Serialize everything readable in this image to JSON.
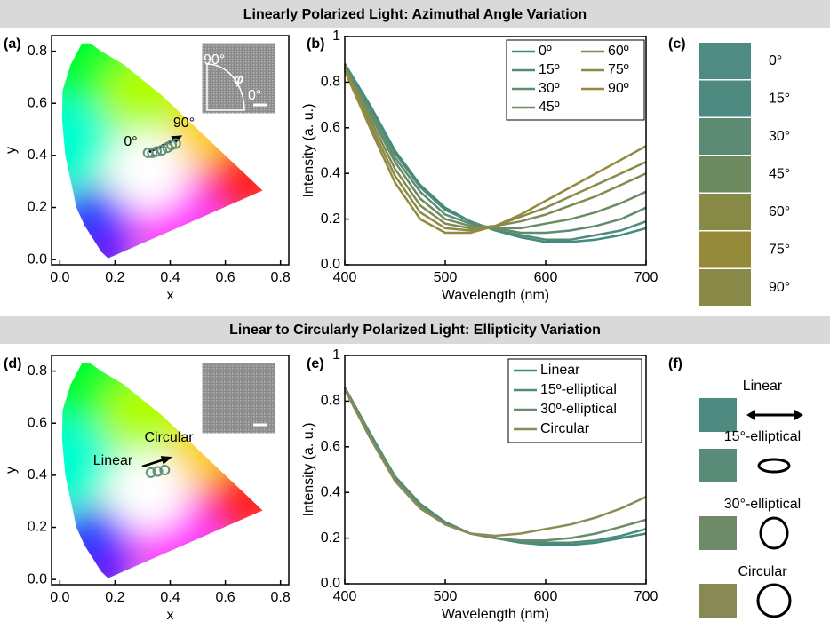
{
  "headers": [
    "Linearly Polarized Light: Azimuthal Angle Variation",
    "Linear to Circularly Polarized Light: Ellipticity Variation"
  ],
  "panel_labels": [
    "(a)",
    "(b)",
    "(c)",
    "(d)",
    "(e)",
    "(f)"
  ],
  "chart_data": [
    {
      "type": "scatter",
      "xlabel": "x",
      "ylabel": "y",
      "xlim": [
        -0.03,
        0.83
      ],
      "ylim": [
        -0.02,
        0.86
      ],
      "xticks": [
        {
          "value": 0,
          "label": "0.0"
        },
        0.2,
        0.4,
        0.6,
        0.8
      ],
      "yticks": [
        {
          "value": 0,
          "label": "0.0"
        },
        0.2,
        0.4,
        0.6,
        0.8
      ],
      "annotations": [
        "0°",
        "90°"
      ],
      "inset_labels": [
        "90°",
        "φ",
        "0°"
      ],
      "series": [
        {
          "color": "#5f8f80",
          "x": [
            0.32,
            0.335,
            0.35,
            0.37,
            0.39,
            0.405,
            0.42
          ],
          "values": [
            0.41,
            0.41,
            0.415,
            0.42,
            0.43,
            0.44,
            0.445
          ]
        }
      ]
    },
    {
      "type": "line",
      "xlabel": "Wavelength (nm)",
      "ylabel": "Intensity (a. u.)",
      "xlim": [
        400,
        700
      ],
      "ylim": [
        0,
        1
      ],
      "xticks": [
        400,
        500,
        600,
        700
      ],
      "yticks": [
        {
          "value": 0,
          "label": "0.0"
        },
        0.2,
        0.4,
        0.6,
        0.8,
        1
      ],
      "x": [
        400,
        425,
        450,
        475,
        500,
        525,
        550,
        575,
        600,
        625,
        650,
        675,
        700
      ],
      "series": [
        {
          "name": "0º",
          "color": "#3f8b7f",
          "values": [
            0.88,
            0.7,
            0.5,
            0.35,
            0.25,
            0.19,
            0.15,
            0.12,
            0.1,
            0.1,
            0.11,
            0.13,
            0.16
          ]
        },
        {
          "name": "15º",
          "color": "#4e8b78",
          "values": [
            0.88,
            0.69,
            0.49,
            0.34,
            0.24,
            0.19,
            0.15,
            0.13,
            0.11,
            0.11,
            0.13,
            0.15,
            0.19
          ]
        },
        {
          "name": "30º",
          "color": "#5e8c6e",
          "values": [
            0.87,
            0.67,
            0.47,
            0.32,
            0.22,
            0.18,
            0.16,
            0.14,
            0.14,
            0.15,
            0.17,
            0.2,
            0.25
          ]
        },
        {
          "name": "45º",
          "color": "#6d8c62",
          "values": [
            0.87,
            0.66,
            0.45,
            0.29,
            0.2,
            0.17,
            0.16,
            0.16,
            0.18,
            0.2,
            0.23,
            0.27,
            0.32
          ]
        },
        {
          "name": "60º",
          "color": "#7d8c55",
          "values": [
            0.86,
            0.64,
            0.42,
            0.26,
            0.18,
            0.16,
            0.17,
            0.19,
            0.22,
            0.26,
            0.3,
            0.35,
            0.4
          ]
        },
        {
          "name": "75º",
          "color": "#8a8b48",
          "values": [
            0.86,
            0.62,
            0.39,
            0.23,
            0.16,
            0.15,
            0.17,
            0.21,
            0.25,
            0.3,
            0.35,
            0.4,
            0.45
          ]
        },
        {
          "name": "90º",
          "color": "#938a3e",
          "values": [
            0.85,
            0.6,
            0.36,
            0.2,
            0.14,
            0.14,
            0.17,
            0.22,
            0.28,
            0.34,
            0.4,
            0.46,
            0.52
          ]
        }
      ]
    },
    {
      "type": "scatter",
      "xlabel": "x",
      "ylabel": "y",
      "xlim": [
        -0.03,
        0.83
      ],
      "ylim": [
        -0.02,
        0.86
      ],
      "xticks": [
        {
          "value": 0,
          "label": "0.0"
        },
        0.2,
        0.4,
        0.6,
        0.8
      ],
      "yticks": [
        {
          "value": 0,
          "label": "0.0"
        },
        0.2,
        0.4,
        0.6,
        0.8
      ],
      "annotations": [
        "Linear",
        "Circular"
      ],
      "series": [
        {
          "color": "#5f8f80",
          "x": [
            0.33,
            0.355,
            0.38
          ],
          "values": [
            0.41,
            0.415,
            0.42
          ]
        }
      ]
    },
    {
      "type": "line",
      "xlabel": "Wavelength (nm)",
      "ylabel": "Intensity (a. u.)",
      "xlim": [
        400,
        700
      ],
      "ylim": [
        0,
        1
      ],
      "xticks": [
        400,
        500,
        600,
        700
      ],
      "yticks": [
        {
          "value": 0,
          "label": "0.0"
        },
        0.2,
        0.4,
        0.6,
        0.8,
        1
      ],
      "x": [
        400,
        425,
        450,
        475,
        500,
        525,
        550,
        575,
        600,
        625,
        650,
        675,
        700
      ],
      "series": [
        {
          "name": "Linear",
          "color": "#3f8b7f",
          "values": [
            0.86,
            0.66,
            0.47,
            0.35,
            0.27,
            0.22,
            0.2,
            0.18,
            0.17,
            0.17,
            0.18,
            0.2,
            0.22
          ]
        },
        {
          "name": "15º-elliptical",
          "color": "#4e8b78",
          "values": [
            0.86,
            0.66,
            0.47,
            0.35,
            0.27,
            0.22,
            0.2,
            0.18,
            0.18,
            0.18,
            0.19,
            0.21,
            0.24
          ]
        },
        {
          "name": "30º-elliptical",
          "color": "#6a8c68",
          "values": [
            0.86,
            0.65,
            0.46,
            0.34,
            0.26,
            0.22,
            0.2,
            0.19,
            0.19,
            0.2,
            0.22,
            0.25,
            0.28
          ]
        },
        {
          "name": "Circular",
          "color": "#8a8b55",
          "values": [
            0.85,
            0.64,
            0.45,
            0.33,
            0.26,
            0.22,
            0.21,
            0.22,
            0.24,
            0.26,
            0.29,
            0.33,
            0.38
          ]
        }
      ]
    }
  ],
  "swatches_c": [
    {
      "label": "0°",
      "color": "#4e8b83"
    },
    {
      "label": "15°",
      "color": "#4f8a80"
    },
    {
      "label": "30°",
      "color": "#5d8a72"
    },
    {
      "label": "45°",
      "color": "#6e8a60"
    },
    {
      "label": "60°",
      "color": "#868a45"
    },
    {
      "label": "75°",
      "color": "#948a3a"
    },
    {
      "label": "90°",
      "color": "#8a8a48"
    }
  ],
  "swatches_f": [
    {
      "label": "Linear",
      "color": "#4f8a80"
    },
    {
      "label": "15°-elliptical",
      "color": "#5a8a78"
    },
    {
      "label": "30°-elliptical",
      "color": "#6e8a68"
    },
    {
      "label": "Circular",
      "color": "#878a55"
    }
  ]
}
